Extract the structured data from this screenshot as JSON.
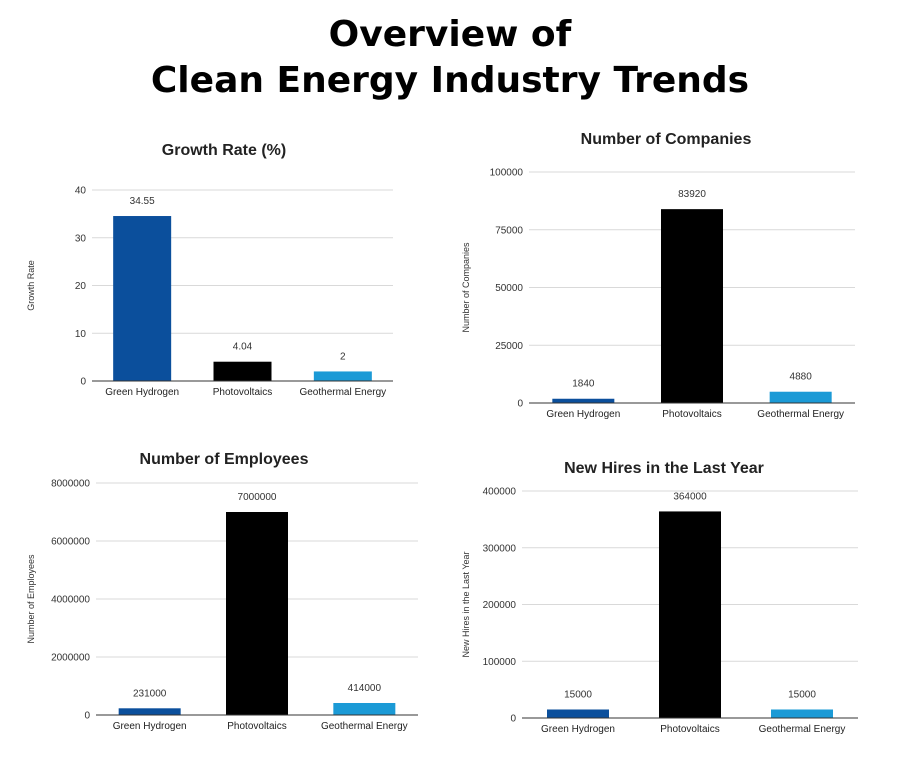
{
  "page": {
    "title_line1": "Overview of",
    "title_line2": "Clean Energy Industry Trends"
  },
  "colors": {
    "green_hydrogen": "#0b4f9c",
    "photovoltaics": "#000000",
    "geothermal_energy": "#1b9ad6"
  },
  "chart_data": [
    {
      "type": "bar",
      "title": "Growth Rate (%)",
      "xlabel": "",
      "ylabel": "Growth Rate",
      "categories": [
        "Green Hydrogen",
        "Photovoltaics",
        "Geothermal Energy"
      ],
      "values": [
        34.55,
        4.04,
        2
      ],
      "data_labels": [
        "34.55",
        "4.04",
        "2"
      ],
      "ylim": [
        0,
        40
      ],
      "yticks": [
        "0",
        "10",
        "20",
        "30",
        "40"
      ],
      "grid": true,
      "legend": "none"
    },
    {
      "type": "bar",
      "title": "Number of Companies",
      "xlabel": "",
      "ylabel": "Number of Companies",
      "categories": [
        "Green Hydrogen",
        "Photovoltaics",
        "Geothermal Energy"
      ],
      "values": [
        1840,
        83920,
        4880
      ],
      "data_labels": [
        "1840",
        "83920",
        "4880"
      ],
      "ylim": [
        0,
        100000
      ],
      "yticks": [
        "0",
        "25000",
        "50000",
        "75000",
        "100000"
      ],
      "grid": true,
      "legend": "none"
    },
    {
      "type": "bar",
      "title": "Number of Employees",
      "xlabel": "",
      "ylabel": "Number of Employees",
      "categories": [
        "Green Hydrogen",
        "Photovoltaics",
        "Geothermal Energy"
      ],
      "values": [
        231000,
        7000000,
        414000
      ],
      "data_labels": [
        "231000",
        "7000000",
        "414000"
      ],
      "ylim": [
        0,
        8000000
      ],
      "yticks": [
        "0",
        "2000000",
        "4000000",
        "6000000",
        "8000000"
      ],
      "grid": true,
      "legend": "none"
    },
    {
      "type": "bar",
      "title": "New Hires in the Last Year",
      "xlabel": "",
      "ylabel": "New Hires in the Last Year",
      "categories": [
        "Green Hydrogen",
        "Photovoltaics",
        "Geothermal Energy"
      ],
      "values": [
        15000,
        364000,
        15000
      ],
      "data_labels": [
        "15000",
        "364000",
        "15000"
      ],
      "ylim": [
        0,
        400000
      ],
      "yticks": [
        "0",
        "100000",
        "200000",
        "300000",
        "400000"
      ],
      "grid": true,
      "legend": "none"
    }
  ]
}
